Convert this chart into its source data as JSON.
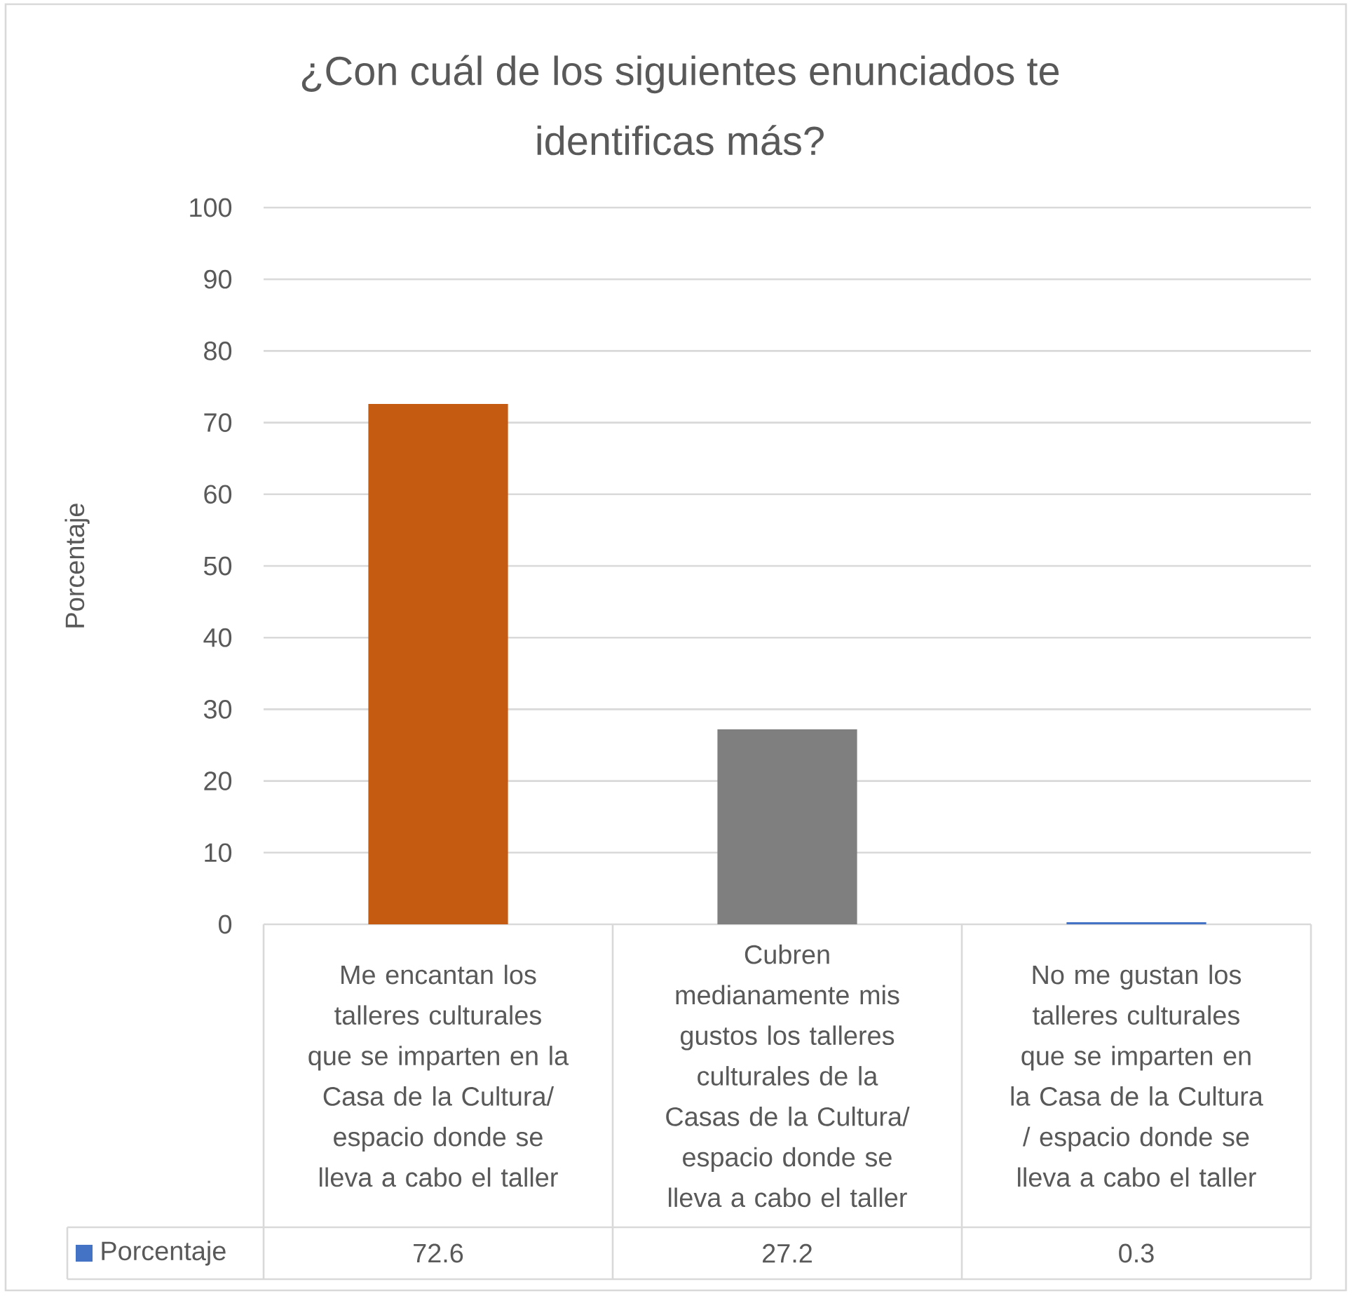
{
  "chart_data": {
    "type": "bar",
    "title": "¿Con cuál de los siguientes enunciados te identificas más?",
    "ylabel": "Porcentaje",
    "categories": [
      "Me encantan los talleres culturales que se imparten en la Casa de la Cultura/ espacio donde se lleva a cabo el taller",
      "Cubren medianamente mis gustos los talleres culturales de la Casas de la Cultura/ espacio donde se lleva a cabo el taller",
      "No me gustan los talleres culturales que se imparten en la Casa de la Cultura / espacio donde se lleva a cabo el taller"
    ],
    "series": [
      {
        "name": "Porcentaje",
        "color": "#4472c4",
        "colors": [
          "#c55a11",
          "#7f7f7f",
          "#4472c4"
        ],
        "values": [
          72.6,
          27.2,
          0.3
        ]
      }
    ],
    "ylim": [
      0,
      100
    ],
    "yticks": [
      0,
      10,
      20,
      30,
      40,
      50,
      60,
      70,
      80,
      90,
      100
    ],
    "grid": "y",
    "legend": "bottom",
    "data_labels": true
  }
}
